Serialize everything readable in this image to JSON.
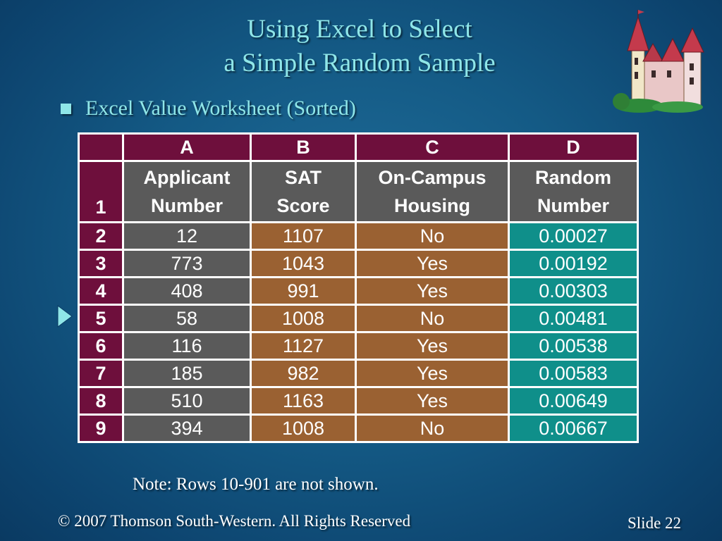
{
  "slide": {
    "title_line1": "Using Excel to Select",
    "title_line2": "a Simple Random Sample",
    "bullet": "Excel Value Worksheet (Sorted)",
    "note": "Note:  Rows 10-901 are not shown.",
    "footer_copyright": "© 2007  Thomson South-Western.  All Rights Reserved",
    "footer_slide": "Slide 22",
    "castle_icon": "castle-clipart-icon",
    "nav_icon": "play-arrow-icon"
  },
  "colors": {
    "title": "#8fe6e8",
    "header_maroon": "#6e0f3c",
    "col_a_gray": "#5a5a5a",
    "col_bc_brown": "#9a6132",
    "col_d_teal": "#0f8f8a"
  },
  "worksheet": {
    "column_letters": [
      "A",
      "B",
      "C",
      "D"
    ],
    "header_row_number": "1",
    "headers": [
      [
        "Applicant",
        "Number"
      ],
      [
        "SAT",
        "Score"
      ],
      [
        "On-Campus",
        "Housing"
      ],
      [
        "Random",
        "Number"
      ]
    ],
    "rows": [
      {
        "row": "2",
        "applicant": "12",
        "sat": "1107",
        "housing": "No",
        "random": "0.00027"
      },
      {
        "row": "3",
        "applicant": "773",
        "sat": "1043",
        "housing": "Yes",
        "random": "0.00192"
      },
      {
        "row": "4",
        "applicant": "408",
        "sat": "991",
        "housing": "Yes",
        "random": "0.00303"
      },
      {
        "row": "5",
        "applicant": "58",
        "sat": "1008",
        "housing": "No",
        "random": "0.00481"
      },
      {
        "row": "6",
        "applicant": "116",
        "sat": "1127",
        "housing": "Yes",
        "random": "0.00538"
      },
      {
        "row": "7",
        "applicant": "185",
        "sat": "982",
        "housing": "Yes",
        "random": "0.00583"
      },
      {
        "row": "8",
        "applicant": "510",
        "sat": "1163",
        "housing": "Yes",
        "random": "0.00649"
      },
      {
        "row": "9",
        "applicant": "394",
        "sat": "1008",
        "housing": "No",
        "random": "0.00667"
      }
    ]
  }
}
